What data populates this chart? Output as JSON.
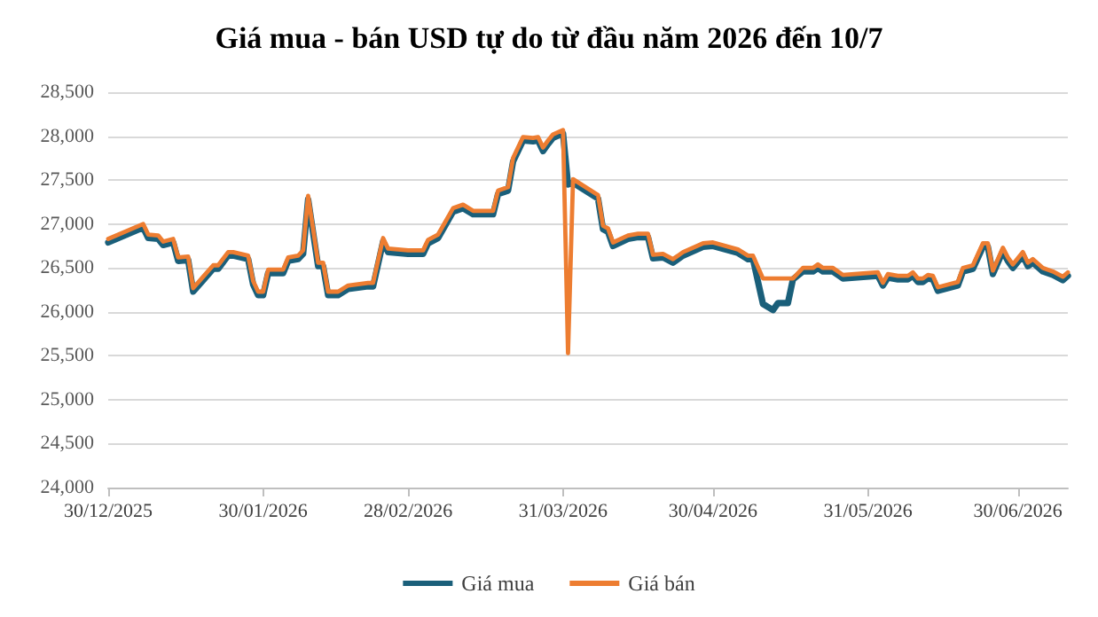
{
  "chart_data": {
    "type": "line",
    "title": "Giá mua - bán USD tự do từ đầu năm 2026 đến 10/7",
    "x": [
      "2025-12-30",
      "2026-01-06",
      "2026-01-07",
      "2026-01-09",
      "2026-01-10",
      "2026-01-12",
      "2026-01-13",
      "2026-01-15",
      "2026-01-16",
      "2026-01-18",
      "2026-01-20",
      "2026-01-21",
      "2026-01-23",
      "2026-01-24",
      "2026-01-27",
      "2026-01-28",
      "2026-01-29",
      "2026-01-30",
      "2026-01-31",
      "2026-02-03",
      "2026-02-04",
      "2026-02-06",
      "2026-02-07",
      "2026-02-08",
      "2026-02-10",
      "2026-02-11",
      "2026-02-12",
      "2026-02-14",
      "2026-02-16",
      "2026-02-20",
      "2026-02-21",
      "2026-02-23",
      "2026-02-24",
      "2026-02-28",
      "2026-03-03",
      "2026-03-04",
      "2026-03-06",
      "2026-03-09",
      "2026-03-11",
      "2026-03-13",
      "2026-03-17",
      "2026-03-18",
      "2026-03-20",
      "2026-03-21",
      "2026-03-23",
      "2026-03-25",
      "2026-03-26",
      "2026-03-27",
      "2026-03-28",
      "2026-03-29",
      "2026-03-31",
      "2026-04-01",
      "2026-04-02",
      "2026-04-07",
      "2026-04-08",
      "2026-04-09",
      "2026-04-10",
      "2026-04-13",
      "2026-04-15",
      "2026-04-17",
      "2026-04-18",
      "2026-04-20",
      "2026-04-22",
      "2026-04-24",
      "2026-04-28",
      "2026-04-30",
      "2026-05-05",
      "2026-05-07",
      "2026-05-08",
      "2026-05-10",
      "2026-05-12",
      "2026-05-13",
      "2026-05-15",
      "2026-05-16",
      "2026-05-18",
      "2026-05-20",
      "2026-05-21",
      "2026-05-22",
      "2026-05-24",
      "2026-05-26",
      "2026-06-02",
      "2026-06-03",
      "2026-06-04",
      "2026-06-06",
      "2026-06-08",
      "2026-06-09",
      "2026-06-10",
      "2026-06-11",
      "2026-06-12",
      "2026-06-13",
      "2026-06-14",
      "2026-06-16",
      "2026-06-18",
      "2026-06-19",
      "2026-06-21",
      "2026-06-23",
      "2026-06-24",
      "2026-06-25",
      "2026-06-27",
      "2026-06-28",
      "2026-06-29",
      "2026-07-01",
      "2026-07-02",
      "2026-07-03",
      "2026-07-05",
      "2026-07-07",
      "2026-07-09",
      "2026-07-10"
    ],
    "series": [
      {
        "name": "Giá mua",
        "color": "#1a5f7a",
        "values": [
          26790,
          26960,
          26840,
          26830,
          26760,
          26790,
          26580,
          26590,
          26230,
          26360,
          26490,
          26490,
          26640,
          26640,
          26600,
          26310,
          26190,
          26190,
          26440,
          26440,
          26580,
          26600,
          26660,
          27280,
          26520,
          26520,
          26190,
          26190,
          26260,
          26290,
          26290,
          26800,
          26680,
          26660,
          26660,
          26780,
          26840,
          27140,
          27180,
          27110,
          27110,
          27340,
          27380,
          27710,
          27950,
          27940,
          27950,
          27830,
          27910,
          27980,
          28030,
          27450,
          27470,
          27290,
          26940,
          26910,
          26750,
          26830,
          26850,
          26850,
          26610,
          26620,
          26560,
          26640,
          26740,
          26750,
          26670,
          26600,
          26600,
          26090,
          26020,
          26100,
          26100,
          26370,
          26460,
          26460,
          26500,
          26460,
          26460,
          26380,
          26410,
          26300,
          26390,
          26370,
          26370,
          26410,
          26340,
          26340,
          26380,
          26370,
          26240,
          26270,
          26300,
          26460,
          26490,
          26740,
          26740,
          26430,
          26690,
          26580,
          26500,
          26640,
          26520,
          26560,
          26460,
          26420,
          26360,
          26410
        ]
      },
      {
        "name": "Giá bán",
        "color": "#ed7d31",
        "values": [
          26830,
          27000,
          26880,
          26870,
          26800,
          26830,
          26620,
          26630,
          26270,
          26400,
          26530,
          26530,
          26680,
          26680,
          26640,
          26350,
          26230,
          26230,
          26480,
          26480,
          26620,
          26640,
          26700,
          27320,
          26560,
          26560,
          26230,
          26230,
          26300,
          26330,
          26330,
          26840,
          26720,
          26700,
          26700,
          26820,
          26880,
          27180,
          27220,
          27150,
          27150,
          27380,
          27420,
          27750,
          27990,
          27980,
          27990,
          27870,
          27950,
          28020,
          28070,
          25530,
          27510,
          27330,
          26980,
          26950,
          26790,
          26870,
          26890,
          26890,
          26650,
          26660,
          26600,
          26680,
          26780,
          26790,
          26710,
          26640,
          26640,
          26380,
          26380,
          26380,
          26380,
          26380,
          26500,
          26500,
          26540,
          26500,
          26500,
          26420,
          26450,
          26330,
          26430,
          26410,
          26410,
          26450,
          26380,
          26380,
          26420,
          26410,
          26280,
          26310,
          26340,
          26500,
          26530,
          26780,
          26780,
          26470,
          26730,
          26620,
          26540,
          26680,
          26560,
          26600,
          26500,
          26460,
          26400,
          26450
        ]
      }
    ],
    "xlim": [
      "2025-12-30",
      "2026-07-10"
    ],
    "xticks": [
      {
        "value": "2025-12-30",
        "label": "30/12/2025"
      },
      {
        "value": "2026-01-30",
        "label": "30/01/2026"
      },
      {
        "value": "2026-02-28",
        "label": "28/02/2026"
      },
      {
        "value": "2026-03-31",
        "label": "31/03/2026"
      },
      {
        "value": "2026-04-30",
        "label": "30/04/2026"
      },
      {
        "value": "2026-05-31",
        "label": "31/05/2026"
      },
      {
        "value": "2026-06-30",
        "label": "30/06/2026"
      }
    ],
    "ylim": [
      24000,
      28500
    ],
    "yticks": [
      {
        "value": 24000,
        "label": "24,000"
      },
      {
        "value": 24500,
        "label": "24,500"
      },
      {
        "value": 25000,
        "label": "25,000"
      },
      {
        "value": 25500,
        "label": "25,500"
      },
      {
        "value": 26000,
        "label": "26,000"
      },
      {
        "value": 26500,
        "label": "26,500"
      },
      {
        "value": 27000,
        "label": "27,000"
      },
      {
        "value": 27500,
        "label": "27,500"
      },
      {
        "value": 28000,
        "label": "28,000"
      },
      {
        "value": 28500,
        "label": "28,500"
      }
    ],
    "grid": "y",
    "legend": "bottom",
    "marker": "none",
    "line_style": "solid"
  }
}
